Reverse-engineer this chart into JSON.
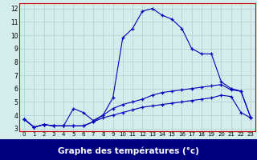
{
  "title": "Graphe des températures (°c)",
  "xlim": [
    -0.5,
    23.5
  ],
  "ylim": [
    2.8,
    12.4
  ],
  "xticks": [
    0,
    1,
    2,
    3,
    4,
    5,
    6,
    7,
    8,
    9,
    10,
    11,
    12,
    13,
    14,
    15,
    16,
    17,
    18,
    19,
    20,
    21,
    22,
    23
  ],
  "yticks": [
    3,
    4,
    5,
    6,
    7,
    8,
    9,
    10,
    11,
    12
  ],
  "background_color": "#d5ecec",
  "grid_color": "#b0d0d0",
  "line_color": "#0000bb",
  "xlabel_bg": "#000080",
  "xlabel_fg": "#ffffff",
  "line1_y": [
    3.7,
    3.1,
    3.3,
    3.2,
    3.2,
    4.5,
    4.2,
    3.6,
    4.0,
    5.3,
    9.8,
    10.5,
    11.8,
    12.0,
    11.5,
    11.2,
    10.5,
    9.0,
    8.6,
    8.6,
    6.5,
    6.0,
    5.8,
    3.8
  ],
  "line2_y": [
    3.7,
    3.1,
    3.3,
    3.2,
    3.2,
    3.2,
    3.2,
    3.5,
    4.0,
    4.5,
    4.8,
    5.0,
    5.2,
    5.5,
    5.7,
    5.8,
    5.9,
    6.0,
    6.1,
    6.2,
    6.3,
    5.9,
    5.8,
    3.8
  ],
  "line3_y": [
    3.7,
    3.1,
    3.3,
    3.2,
    3.2,
    3.2,
    3.2,
    3.5,
    3.8,
    4.0,
    4.2,
    4.4,
    4.6,
    4.7,
    4.8,
    4.9,
    5.0,
    5.1,
    5.2,
    5.3,
    5.5,
    5.4,
    4.2,
    3.8
  ]
}
